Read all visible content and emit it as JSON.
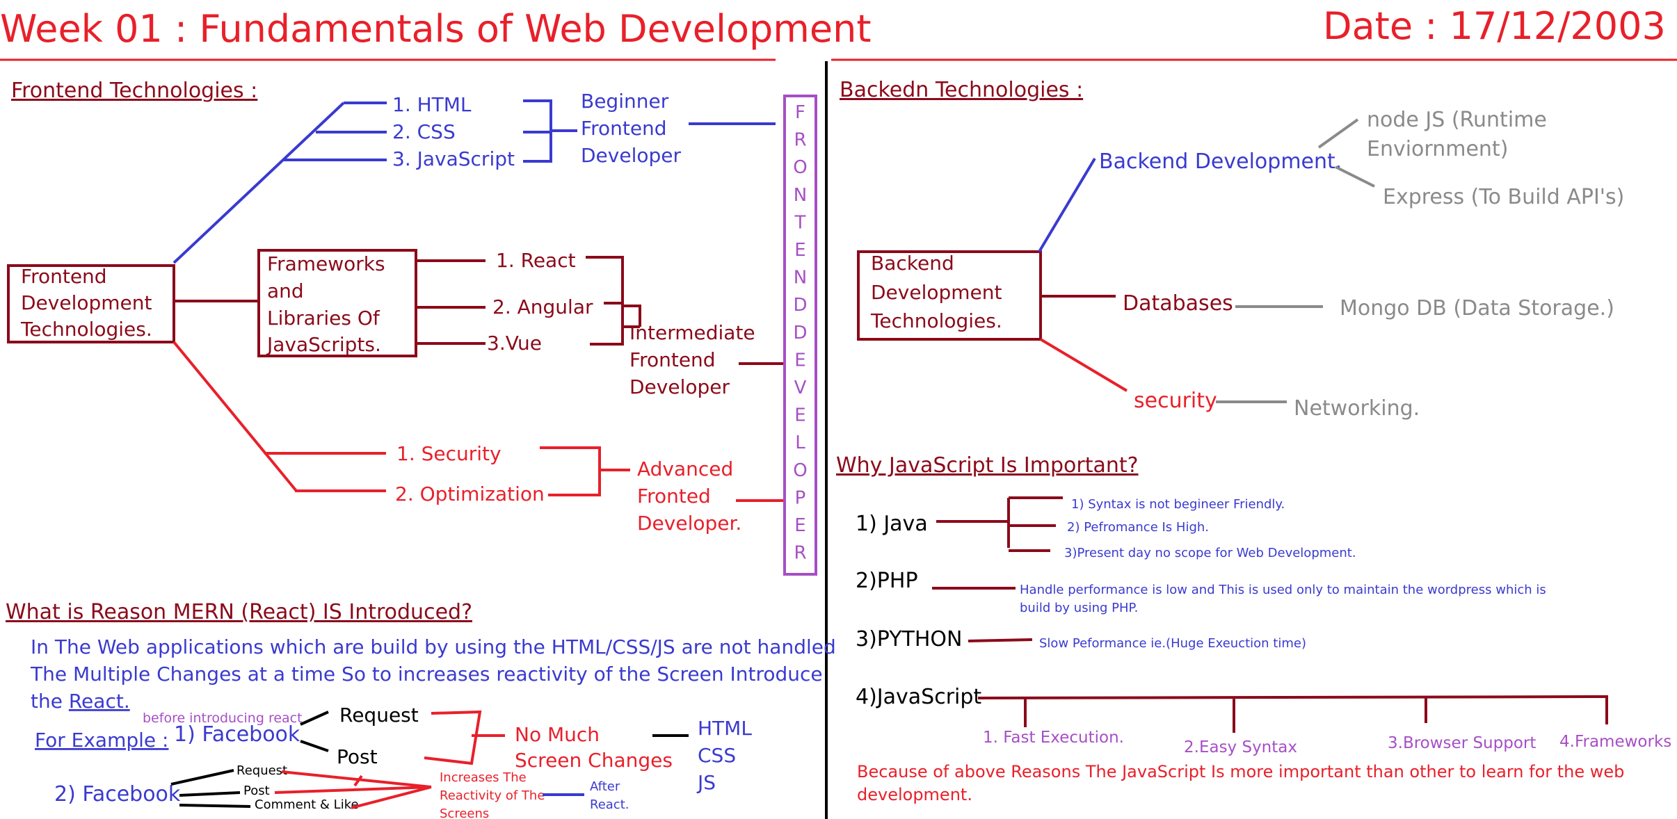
{
  "title": "Week 01 : Fundamentals of Web Development",
  "date": "Date : 17/12/2003",
  "colors": {
    "red": "#e8202a",
    "darkred": "#8b0a1a",
    "blue": "#3a3ad0",
    "gray": "#8a8a8a",
    "purple": "#a64fc6",
    "black": "#000000"
  },
  "frontend": {
    "heading": "Frontend Technologies :",
    "root": [
      "Frontend",
      "Development",
      "Technologies."
    ],
    "basics": [
      "1. HTML",
      "2. CSS",
      "3. JavaScript"
    ],
    "beginner": [
      "Beginner",
      "Frontend",
      "Developer"
    ],
    "frameworks_box": [
      "Frameworks",
      "and",
      "Libraries Of",
      "JavaScripts."
    ],
    "frameworks": [
      "1. React",
      "2. Angular",
      "3.Vue"
    ],
    "intermediate": [
      "Intermediate",
      "Frontend",
      "Developer"
    ],
    "advanced_topics": [
      "1. Security",
      "2. Optimization"
    ],
    "advanced": [
      "Advanced",
      "Fronted",
      "Developer."
    ],
    "vertical_label": [
      "F",
      "R",
      "O",
      "N",
      "T",
      "E",
      "N",
      "D",
      "D",
      "E",
      "V",
      "E",
      "L",
      "O",
      "P",
      "E",
      "R"
    ]
  },
  "mern": {
    "heading": "What is Reason MERN (React) IS Introduced?",
    "paragraph": [
      "In The Web applications which are build by using the HTML/CSS/JS are not handled",
      "The Multiple Changes at a time So to increases reactivity of the Screen Introduce",
      "the "
    ],
    "react_link": "React.",
    "note_before": "before introducing react",
    "example_label": "For Example :",
    "fb1": "1) Facebook",
    "request": "Request",
    "post": "Post",
    "no_much": [
      "No Much",
      "Screen Changes"
    ],
    "html_css_js": [
      "HTML",
      "CSS",
      "JS"
    ],
    "fb2": "2) Facebook",
    "small_request": "Request",
    "small_post": "Post",
    "comment_like": "Comment & Like",
    "increases": [
      "Increases The",
      "Reactivity of The",
      "Screens"
    ],
    "after": [
      "After",
      "React."
    ]
  },
  "backend": {
    "heading": "Backedn Technologies :",
    "root": [
      "Backend",
      "Development",
      "Technologies."
    ],
    "dev": "Backend Development.",
    "node": [
      "node JS (Runtime",
      "Enviornment)"
    ],
    "express": "Express (To Build API's)",
    "databases": "Databases",
    "mongo": "Mongo DB (Data Storage.)",
    "security": "security",
    "networking": "Networking."
  },
  "why_js": {
    "heading": "Why JavaScript Is Important?",
    "java": "1) Java",
    "java_points": [
      "1) Syntax is not begineer Friendly.",
      "2) Pefromance Is High.",
      "3)Present day no scope for Web Development."
    ],
    "php": "2)PHP",
    "php_note": [
      "Handle performance is low and This is used only to maintain the wordpress which is",
      "build by using PHP."
    ],
    "python": "3)PYTHON",
    "python_note": "Slow Peformance ie.(Huge Exeuction time)",
    "javascript": "4)JavaScript",
    "js_points": [
      "1. Fast Execution.",
      "2.Easy Syntax",
      "3.Browser Support",
      "4.Frameworks"
    ],
    "conclusion": [
      "Because of above Reasons The JavaScript Is more important than other to learn for the web",
      "development."
    ]
  }
}
